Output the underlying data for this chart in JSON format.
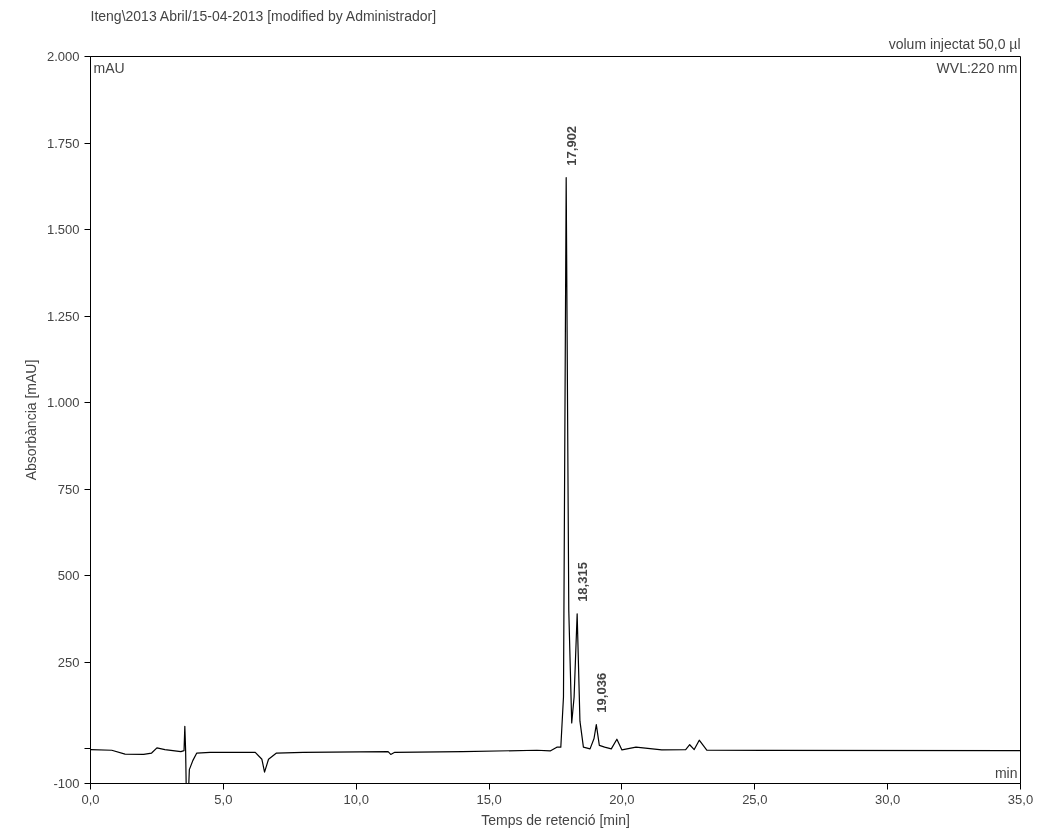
{
  "chart_data": {
    "type": "line",
    "title": "Iteng\\2013 Abril/15-04-2013 [modified by Administrador]",
    "subtitle": "volum injectat 50,0 µl",
    "xlabel": "Temps de retenció [min]",
    "ylabel": "Absorbància [mAU]",
    "xlim": [
      0,
      35
    ],
    "ylim": [
      -100,
      2000
    ],
    "xticks": [
      {
        "value": 0,
        "label": "0,0"
      },
      {
        "value": 5,
        "label": "5,0"
      },
      {
        "value": 10,
        "label": "10,0"
      },
      {
        "value": 15,
        "label": "15,0"
      },
      {
        "value": 20,
        "label": "20,0"
      },
      {
        "value": 25,
        "label": "25,0"
      },
      {
        "value": 30,
        "label": "30,0"
      },
      {
        "value": 35,
        "label": "35,0"
      }
    ],
    "yticks": [
      -100,
      {
        "value": 0,
        "label": null
      },
      250,
      500,
      750,
      {
        "value": 1000,
        "label": "1.000"
      },
      {
        "value": 1250,
        "label": "1.250"
      },
      {
        "value": 1500,
        "label": "1.500"
      },
      {
        "value": 1750,
        "label": "1.750"
      },
      {
        "value": 2000,
        "label": "2.000"
      }
    ],
    "grid": false,
    "marker": "none",
    "line_style": "solid",
    "series": [
      {
        "color": "#000000",
        "x": [
          0,
          0.8,
          1.3,
          2.0,
          2.3,
          2.5,
          2.8,
          3.4,
          3.52,
          3.55,
          3.58,
          3.6,
          3.7,
          3.72,
          3.85,
          4.0,
          4.5,
          6.2,
          6.45,
          6.55,
          6.7,
          7.0,
          8,
          11.2,
          11.3,
          11.45,
          14,
          16.8,
          17.3,
          17.55,
          17.7,
          17.8,
          17.902,
          18.0,
          18.11,
          18.2,
          18.315,
          18.42,
          18.55,
          18.8,
          18.95,
          19.036,
          19.15,
          19.35,
          19.6,
          19.81,
          20.0,
          20.53,
          21.5,
          22.4,
          22.55,
          22.72,
          22.91,
          23.2,
          35
        ],
        "values": [
          -2,
          -4,
          -15,
          -16,
          -12,
          3,
          -2,
          -8,
          -5,
          65,
          -5,
          -100,
          -100,
          -60,
          -34,
          -12,
          -10,
          -10,
          -30,
          -67,
          -30,
          -12,
          -10,
          -8,
          -16,
          -10,
          -8,
          -4,
          -6,
          5,
          5,
          150,
          1650,
          400,
          75,
          150,
          390,
          80,
          5,
          0,
          30,
          70,
          10,
          5,
          0,
          28,
          -3,
          5,
          -3,
          -2,
          12,
          -2,
          25,
          -4,
          -5
        ]
      }
    ],
    "annotations": [
      {
        "text": "17,902",
        "x": 17.902,
        "y": 1650
      },
      {
        "text": "18,315",
        "x": 18.315,
        "y": 390
      },
      {
        "text": "19,036",
        "x": 19.036,
        "y": 70
      },
      "mAU",
      "WVL:220 nm",
      "min"
    ]
  }
}
